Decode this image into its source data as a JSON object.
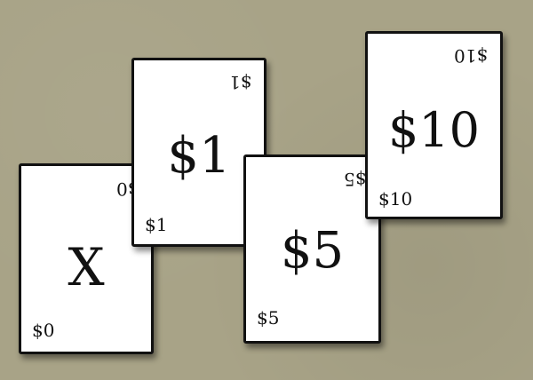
{
  "table": {
    "background_color": "#a8a387"
  },
  "cards": {
    "zero": {
      "center": "X",
      "corner": "$0",
      "corner_rotated": "$0"
    },
    "one": {
      "center": "$1",
      "corner": "$1",
      "corner_rotated": "$1"
    },
    "five": {
      "center": "$5",
      "corner": "$5",
      "corner_rotated": "$5"
    },
    "ten": {
      "center": "$10",
      "corner": "$10",
      "corner_rotated": "$10"
    }
  }
}
